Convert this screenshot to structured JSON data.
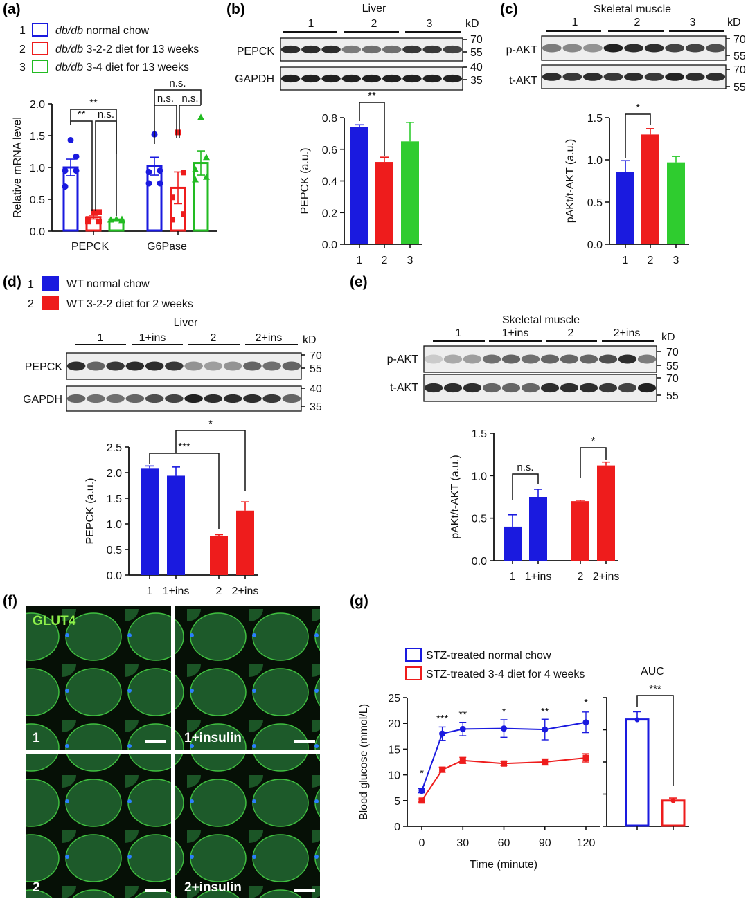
{
  "panels": {
    "a": "(a)",
    "b": "(b)",
    "c": "(c)",
    "d": "(d)",
    "e": "(e)",
    "f": "(f)",
    "g": "(g)"
  },
  "colors": {
    "blue": "#1a1adf",
    "red": "#ee1c1c",
    "green": "#22bb22",
    "green_light": "#2fcc2f"
  },
  "legend_a": [
    {
      "num": "1",
      "italic": "db/db",
      "text": " normal chow"
    },
    {
      "num": "2",
      "italic": "db/db",
      "text": " 3-2-2 diet for 13 weeks"
    },
    {
      "num": "3",
      "italic": "db/db",
      "text": " 3-4 diet for 13 weeks"
    }
  ],
  "legend_d": [
    {
      "num": "1",
      "text": "WT normal chow"
    },
    {
      "num": "2",
      "text": "WT 3-2-2 diet for 2 weeks"
    }
  ],
  "legend_g": [
    {
      "text": "STZ-treated normal chow"
    },
    {
      "text": "STZ-treated 3-4 diet for 4 weeks"
    }
  ],
  "blots": {
    "b": {
      "tissue": "Liver",
      "groups": [
        "1",
        "2",
        "3"
      ],
      "kd": "kD",
      "rows": [
        "PEPCK",
        "GAPDH"
      ],
      "markers": [
        "70",
        "55",
        "40",
        "35"
      ]
    },
    "c": {
      "tissue": "Skeletal muscle",
      "groups": [
        "1",
        "2",
        "3"
      ],
      "kd": "kD",
      "rows": [
        "p-AKT",
        "t-AKT"
      ],
      "markers": [
        "70",
        "55",
        "70",
        "55"
      ]
    },
    "d": {
      "tissue": "Liver",
      "groups": [
        "1",
        "1+ins",
        "2",
        "2+ins"
      ],
      "kd": "kD",
      "rows": [
        "PEPCK",
        "GAPDH"
      ],
      "markers": [
        "70",
        "55",
        "40",
        "35"
      ]
    },
    "e": {
      "tissue": "Skeletal muscle",
      "groups": [
        "1",
        "1+ins",
        "2",
        "2+ins"
      ],
      "kd": "kD",
      "rows": [
        "p-AKT",
        "t-AKT"
      ],
      "markers": [
        "70",
        "55",
        "70",
        "55"
      ]
    }
  },
  "micro": {
    "stain": "GLUT4",
    "tiles": [
      "1",
      "1+insulin",
      "2",
      "2+insulin"
    ]
  },
  "chart_data": [
    {
      "id": "a",
      "type": "bar",
      "ylabel": "Relative mRNA level",
      "ylim": [
        0,
        2.0
      ],
      "yticks": [
        "0.0",
        "0.5",
        "1.0",
        "1.5",
        "2.0"
      ],
      "categories": [
        "PEPCK",
        "G6Pase"
      ],
      "series": [
        {
          "name": "db/db normal chow",
          "values": [
            1.0,
            1.02
          ],
          "errors": [
            0.13,
            0.14
          ],
          "points": [
            [
              1.43,
              1.17,
              0.95,
              0.95,
              0.7
            ],
            [
              1.52,
              0.95,
              0.93,
              0.75,
              0.75
            ]
          ]
        },
        {
          "name": "db/db 3-2-2 diet for 13 weeks",
          "values": [
            0.22,
            0.68
          ],
          "errors": [
            0.03,
            0.25
          ],
          "points": [
            [
              0.3,
              0.3,
              0.18,
              0.15,
              0.15
            ],
            [
              1.55,
              0.92,
              0.53,
              0.27,
              0.18
            ]
          ]
        },
        {
          "name": "db/db 3-4 diet for 13 weeks",
          "values": [
            0.18,
            1.07
          ],
          "errors": [
            0.01,
            0.19
          ],
          "points": [
            [
              0.19,
              0.19,
              0.18,
              0.17,
              0.18
            ],
            [
              1.79,
              1.16,
              0.97,
              0.85,
              0.81
            ]
          ]
        }
      ],
      "significance": [
        "**",
        "**",
        "n.s.",
        "n.s.",
        "n.s.",
        "n.s."
      ]
    },
    {
      "id": "b",
      "type": "bar",
      "ylabel": "PEPCK (a.u.)",
      "ylim": [
        0,
        0.8
      ],
      "yticks": [
        "0.0",
        "0.2",
        "0.4",
        "0.6",
        "0.8"
      ],
      "categories": [
        "1",
        "2",
        "3"
      ],
      "values": [
        0.74,
        0.52,
        0.65
      ],
      "errors": [
        0.015,
        0.03,
        0.12
      ],
      "significance": [
        "**"
      ]
    },
    {
      "id": "c",
      "type": "bar",
      "ylabel": "pAKt/t-AKT (a.u.)",
      "ylim": [
        0,
        1.5
      ],
      "yticks": [
        "0.0",
        "0.5",
        "1.0",
        "1.5"
      ],
      "categories": [
        "1",
        "2",
        "3"
      ],
      "values": [
        0.86,
        1.3,
        0.97
      ],
      "errors": [
        0.13,
        0.07,
        0.07
      ],
      "significance": [
        "*"
      ]
    },
    {
      "id": "d",
      "type": "bar",
      "ylabel": "PEPCK (a.u.)",
      "ylim": [
        0,
        2.5
      ],
      "yticks": [
        "0.0",
        "0.5",
        "1.0",
        "1.5",
        "2.0",
        "2.5"
      ],
      "categories": [
        "1",
        "1+ins",
        "2",
        "2+ins"
      ],
      "values": [
        2.09,
        1.94,
        0.77,
        1.26
      ],
      "errors": [
        0.04,
        0.17,
        0.02,
        0.17
      ],
      "significance": [
        "***",
        "*"
      ]
    },
    {
      "id": "e",
      "type": "bar",
      "ylabel": "pAKt/t-AKT (a.u.)",
      "ylim": [
        0,
        1.5
      ],
      "yticks": [
        "0.0",
        "0.5",
        "1.0",
        "1.5"
      ],
      "categories": [
        "1",
        "1+ins",
        "2",
        "2+ins"
      ],
      "values": [
        0.4,
        0.75,
        0.7,
        1.12
      ],
      "errors": [
        0.14,
        0.09,
        0.01,
        0.04
      ],
      "significance": [
        "n.s.",
        "*"
      ]
    },
    {
      "id": "g",
      "type": "line",
      "xlabel": "Time (minute)",
      "ylabel": "Blood glucose (mmol/L)",
      "ylim": [
        0,
        25
      ],
      "yticks": [
        "0",
        "5",
        "10",
        "15",
        "20",
        "25"
      ],
      "x": [
        0,
        15,
        30,
        60,
        90,
        120
      ],
      "xticks": [
        "0",
        "30",
        "60",
        "90",
        "120"
      ],
      "xtick_values": [
        0,
        30,
        60,
        90,
        120
      ],
      "series": [
        {
          "name": "STZ-treated normal chow",
          "values": [
            6.9,
            18.0,
            18.9,
            19.0,
            18.8,
            20.2
          ],
          "errors": [
            0.4,
            1.3,
            1.3,
            1.7,
            2.0,
            2.0
          ]
        },
        {
          "name": "STZ-treated 3-4 diet for 4 weeks",
          "values": [
            5.0,
            11.0,
            12.8,
            12.2,
            12.5,
            13.3
          ],
          "errors": [
            0.3,
            0.5,
            0.6,
            0.4,
            0.6,
            0.8
          ]
        }
      ],
      "significance": [
        "*",
        "***",
        "**",
        "*",
        "**",
        "*"
      ]
    },
    {
      "id": "g_auc",
      "type": "bar",
      "title": "AUC",
      "ylim": [
        0,
        1
      ],
      "categories": [
        "STZ-treated normal chow",
        "STZ-treated 3-4 diet for 4 weeks"
      ],
      "values": [
        0.83,
        0.2
      ],
      "errors": [
        0.06,
        0.02
      ],
      "significance": [
        "***"
      ]
    }
  ]
}
